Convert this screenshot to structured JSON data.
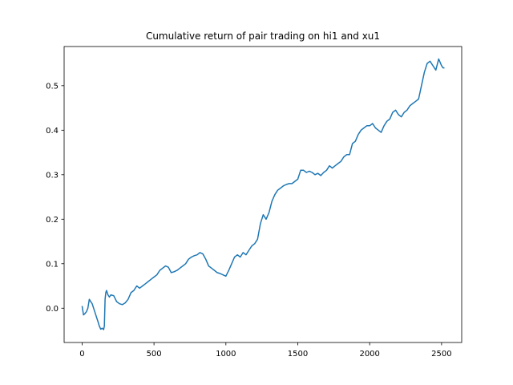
{
  "chart_data": {
    "type": "line",
    "title": "Cumulative return of pair trading on hi1 and xu1",
    "xlabel": "",
    "ylabel": "",
    "xlim": [
      -125,
      2640
    ],
    "ylim": [
      -0.077,
      0.588
    ],
    "x_ticks": [
      0,
      500,
      1000,
      1500,
      2000,
      2500
    ],
    "y_ticks": [
      0.0,
      0.1,
      0.2,
      0.3,
      0.4,
      0.5
    ],
    "y_tick_labels": [
      "0.0",
      "0.1",
      "0.2",
      "0.3",
      "0.4",
      "0.5"
    ],
    "grid": false,
    "legend": "none",
    "series": [
      {
        "color": "#1f77b4",
        "x": [
          0,
          10,
          20,
          30,
          40,
          50,
          60,
          70,
          80,
          90,
          100,
          110,
          120,
          130,
          140,
          150,
          155,
          160,
          165,
          170,
          175,
          180,
          190,
          200,
          220,
          240,
          260,
          280,
          300,
          320,
          340,
          360,
          380,
          400,
          420,
          440,
          460,
          480,
          500,
          520,
          540,
          560,
          580,
          600,
          620,
          640,
          660,
          680,
          700,
          720,
          740,
          760,
          780,
          800,
          820,
          840,
          860,
          880,
          900,
          920,
          940,
          960,
          980,
          1000,
          1020,
          1040,
          1060,
          1080,
          1100,
          1120,
          1140,
          1160,
          1180,
          1200,
          1220,
          1240,
          1260,
          1280,
          1300,
          1320,
          1340,
          1360,
          1380,
          1400,
          1420,
          1440,
          1460,
          1480,
          1500,
          1520,
          1540,
          1560,
          1580,
          1600,
          1620,
          1640,
          1660,
          1680,
          1700,
          1720,
          1740,
          1760,
          1780,
          1800,
          1820,
          1840,
          1860,
          1880,
          1900,
          1920,
          1940,
          1960,
          1980,
          2000,
          2020,
          2040,
          2060,
          2080,
          2100,
          2120,
          2140,
          2160,
          2180,
          2200,
          2220,
          2240,
          2260,
          2280,
          2300,
          2320,
          2340,
          2360,
          2380,
          2400,
          2420,
          2440,
          2460,
          2480,
          2500,
          2510,
          2520
        ],
        "y": [
          0.005,
          -0.015,
          -0.012,
          -0.008,
          0.0,
          0.02,
          0.015,
          0.01,
          0.0,
          -0.01,
          -0.02,
          -0.03,
          -0.04,
          -0.047,
          -0.045,
          -0.048,
          -0.04,
          0.02,
          0.035,
          0.04,
          0.035,
          0.03,
          0.025,
          0.03,
          0.028,
          0.015,
          0.01,
          0.008,
          0.012,
          0.02,
          0.035,
          0.04,
          0.05,
          0.045,
          0.05,
          0.055,
          0.06,
          0.065,
          0.07,
          0.075,
          0.085,
          0.09,
          0.095,
          0.092,
          0.08,
          0.082,
          0.085,
          0.09,
          0.095,
          0.1,
          0.11,
          0.115,
          0.118,
          0.12,
          0.125,
          0.122,
          0.11,
          0.095,
          0.09,
          0.085,
          0.08,
          0.078,
          0.075,
          0.072,
          0.085,
          0.1,
          0.115,
          0.12,
          0.115,
          0.125,
          0.12,
          0.13,
          0.14,
          0.145,
          0.155,
          0.19,
          0.21,
          0.2,
          0.215,
          0.24,
          0.255,
          0.265,
          0.27,
          0.275,
          0.278,
          0.28,
          0.28,
          0.285,
          0.29,
          0.31,
          0.31,
          0.305,
          0.308,
          0.305,
          0.3,
          0.303,
          0.298,
          0.305,
          0.31,
          0.32,
          0.315,
          0.32,
          0.325,
          0.33,
          0.34,
          0.345,
          0.345,
          0.37,
          0.375,
          0.39,
          0.4,
          0.405,
          0.41,
          0.41,
          0.415,
          0.405,
          0.4,
          0.395,
          0.41,
          0.42,
          0.425,
          0.44,
          0.445,
          0.435,
          0.43,
          0.44,
          0.445,
          0.455,
          0.46,
          0.465,
          0.47,
          0.5,
          0.53,
          0.55,
          0.555,
          0.545,
          0.535,
          0.56,
          0.545,
          0.54,
          0.54
        ]
      }
    ]
  }
}
